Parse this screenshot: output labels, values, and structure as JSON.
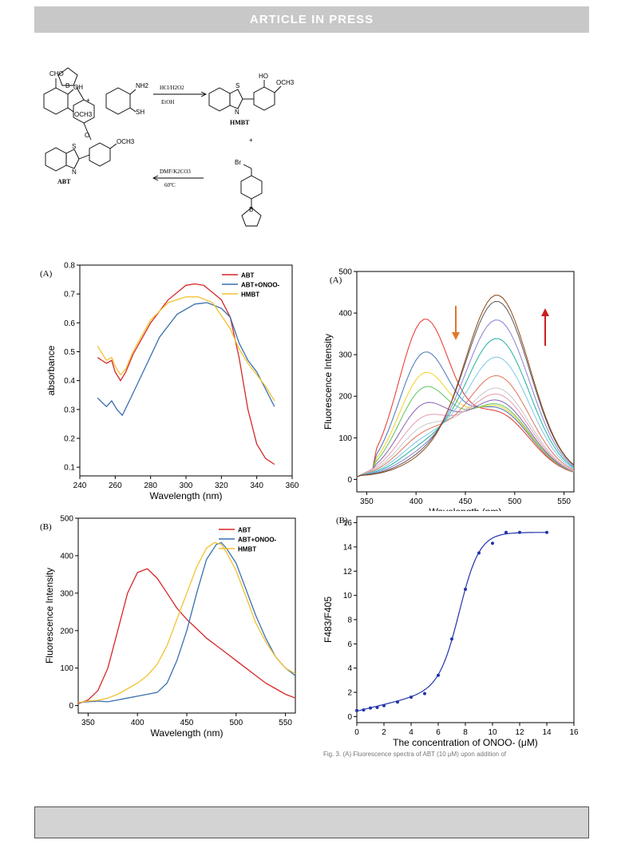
{
  "header": {
    "banner": "ARTICLE  IN  PRESS"
  },
  "scheme": {
    "reagent1": {
      "cho": "CHO",
      "oh": "OH",
      "och3": "OCH3"
    },
    "reagent2": {
      "nh2": "NH2",
      "sh": "SH"
    },
    "plus": "+",
    "step1": {
      "above": "HCl/H2O2",
      "below": "EtOH"
    },
    "product1": {
      "ho": "HO",
      "och3": "OCH3",
      "s": "S",
      "n": "N",
      "name": "HMBT"
    },
    "reagent3": {
      "br": "Br",
      "b": "B",
      "o": "O"
    },
    "step2": {
      "above": "DMF/K2CO3",
      "below": "60ºC"
    },
    "product2": {
      "b": "B",
      "o": "O",
      "och3": "OCH3",
      "s": "S",
      "n": "N",
      "name": "ABT"
    }
  },
  "panels": {
    "absorbance": {
      "label": "(A)"
    },
    "fluorescence_b": {
      "label": "(B)"
    },
    "titration": {
      "label": "(A)"
    },
    "ratio": {
      "label": "(B)"
    }
  },
  "chart_data": [
    {
      "id": "absorbance",
      "type": "line",
      "xlabel": "Wavelength (nm)",
      "ylabel": "absorbance",
      "xlim": [
        240,
        360
      ],
      "ylim": [
        0.07,
        0.8
      ],
      "xticks": [
        240,
        260,
        280,
        300,
        320,
        340,
        360
      ],
      "yticks": [
        0.1,
        0.2,
        0.3,
        0.4,
        0.5,
        0.6,
        0.7,
        0.8
      ],
      "legend": "top-right",
      "series": [
        {
          "name": "ABT",
          "color": "#d62728",
          "points": [
            [
              250,
              0.48
            ],
            [
              255,
              0.46
            ],
            [
              258,
              0.47
            ],
            [
              260,
              0.43
            ],
            [
              263,
              0.4
            ],
            [
              266,
              0.43
            ],
            [
              270,
              0.49
            ],
            [
              280,
              0.6
            ],
            [
              290,
              0.68
            ],
            [
              300,
              0.73
            ],
            [
              305,
              0.735
            ],
            [
              310,
              0.73
            ],
            [
              320,
              0.68
            ],
            [
              325,
              0.62
            ],
            [
              330,
              0.48
            ],
            [
              335,
              0.3
            ],
            [
              340,
              0.18
            ],
            [
              345,
              0.13
            ],
            [
              350,
              0.11
            ]
          ]
        },
        {
          "name": "ABT+ONOO-",
          "color": "#3a6fb0",
          "points": [
            [
              250,
              0.34
            ],
            [
              255,
              0.31
            ],
            [
              258,
              0.33
            ],
            [
              261,
              0.3
            ],
            [
              264,
              0.28
            ],
            [
              268,
              0.33
            ],
            [
              275,
              0.42
            ],
            [
              285,
              0.55
            ],
            [
              295,
              0.63
            ],
            [
              305,
              0.665
            ],
            [
              312,
              0.67
            ],
            [
              320,
              0.65
            ],
            [
              325,
              0.62
            ],
            [
              330,
              0.53
            ],
            [
              335,
              0.47
            ],
            [
              340,
              0.43
            ],
            [
              345,
              0.37
            ],
            [
              350,
              0.31
            ]
          ]
        },
        {
          "name": "HMBT",
          "color": "#f2c232",
          "points": [
            [
              250,
              0.52
            ],
            [
              255,
              0.47
            ],
            [
              258,
              0.48
            ],
            [
              260,
              0.45
            ],
            [
              263,
              0.42
            ],
            [
              266,
              0.44
            ],
            [
              270,
              0.5
            ],
            [
              280,
              0.61
            ],
            [
              290,
              0.67
            ],
            [
              300,
              0.69
            ],
            [
              307,
              0.69
            ],
            [
              315,
              0.67
            ],
            [
              325,
              0.58
            ],
            [
              330,
              0.51
            ],
            [
              335,
              0.46
            ],
            [
              340,
              0.42
            ],
            [
              345,
              0.38
            ],
            [
              350,
              0.33
            ]
          ]
        }
      ]
    },
    {
      "id": "fluorescence_b",
      "type": "line",
      "xlabel": "Wavelength (nm)",
      "ylabel": "Fluorescence Intensity",
      "xlim": [
        340,
        560
      ],
      "ylim": [
        -20,
        500
      ],
      "xticks": [
        350,
        400,
        450,
        500,
        550
      ],
      "yticks": [
        0,
        100,
        200,
        300,
        400,
        500
      ],
      "legend": "top-right",
      "series": [
        {
          "name": "ABT",
          "color": "#d62728",
          "points": [
            [
              340,
              5
            ],
            [
              350,
              15
            ],
            [
              360,
              40
            ],
            [
              370,
              100
            ],
            [
              380,
              200
            ],
            [
              390,
              300
            ],
            [
              400,
              355
            ],
            [
              410,
              365
            ],
            [
              420,
              340
            ],
            [
              430,
              300
            ],
            [
              440,
              260
            ],
            [
              450,
              230
            ],
            [
              460,
              205
            ],
            [
              470,
              180
            ],
            [
              480,
              160
            ],
            [
              490,
              140
            ],
            [
              500,
              120
            ],
            [
              510,
              100
            ],
            [
              520,
              80
            ],
            [
              530,
              60
            ],
            [
              540,
              45
            ],
            [
              550,
              30
            ],
            [
              560,
              20
            ]
          ]
        },
        {
          "name": "ABT+ONOO-",
          "color": "#3a6fb0",
          "points": [
            [
              340,
              8
            ],
            [
              350,
              10
            ],
            [
              360,
              12
            ],
            [
              370,
              10
            ],
            [
              380,
              15
            ],
            [
              390,
              20
            ],
            [
              400,
              25
            ],
            [
              410,
              30
            ],
            [
              420,
              35
            ],
            [
              430,
              60
            ],
            [
              440,
              120
            ],
            [
              450,
              200
            ],
            [
              460,
              300
            ],
            [
              470,
              390
            ],
            [
              480,
              430
            ],
            [
              485,
              435
            ],
            [
              490,
              420
            ],
            [
              500,
              380
            ],
            [
              510,
              310
            ],
            [
              520,
              240
            ],
            [
              530,
              180
            ],
            [
              540,
              130
            ],
            [
              550,
              100
            ],
            [
              560,
              80
            ]
          ]
        },
        {
          "name": "HMBT",
          "color": "#f2c232",
          "points": [
            [
              340,
              8
            ],
            [
              350,
              12
            ],
            [
              360,
              14
            ],
            [
              370,
              20
            ],
            [
              380,
              30
            ],
            [
              390,
              45
            ],
            [
              400,
              60
            ],
            [
              410,
              80
            ],
            [
              420,
              110
            ],
            [
              430,
              160
            ],
            [
              440,
              230
            ],
            [
              450,
              300
            ],
            [
              460,
              370
            ],
            [
              470,
              420
            ],
            [
              478,
              435
            ],
            [
              485,
              430
            ],
            [
              490,
              410
            ],
            [
              500,
              360
            ],
            [
              510,
              290
            ],
            [
              520,
              220
            ],
            [
              530,
              170
            ],
            [
              540,
              130
            ],
            [
              550,
              100
            ],
            [
              560,
              85
            ]
          ]
        }
      ]
    },
    {
      "id": "titration",
      "type": "line",
      "xlabel": "Wavelength (nm)",
      "ylabel": "Fluorescence Intensity",
      "xlim": [
        340,
        560
      ],
      "ylim": [
        -30,
        500
      ],
      "xticks": [
        350,
        400,
        450,
        500,
        550
      ],
      "yticks": [
        0,
        100,
        200,
        300,
        400,
        500
      ],
      "peak_short": [
        365,
        285,
        235,
        200,
        160,
        128,
        105,
        88,
        72,
        58,
        45,
        35,
        28
      ],
      "peak_long": [
        150,
        160,
        165,
        170,
        180,
        195,
        210,
        240,
        285,
        330,
        375,
        420,
        435
      ],
      "colors": [
        "#e8322a",
        "#4a74b8",
        "#f2d22b",
        "#5cc45c",
        "#8a5fb0",
        "#e79bb2",
        "#c8c8c8",
        "#e0725a",
        "#7fc7e6",
        "#20b0a0",
        "#8a7fd8",
        "#5a5a5a",
        "#8b4513"
      ],
      "arrows": [
        {
          "dir": "down",
          "color": "#e0782a"
        },
        {
          "dir": "up",
          "color": "#cc2020"
        }
      ]
    },
    {
      "id": "ratio",
      "type": "scatter",
      "xlabel": "The concentration of ONOO- (μM)",
      "ylabel": "F483/F405",
      "xlim": [
        0,
        16
      ],
      "ylim": [
        -0.5,
        16.5
      ],
      "xticks": [
        0,
        2,
        4,
        6,
        8,
        10,
        12,
        14,
        16
      ],
      "yticks": [
        0,
        2,
        4,
        6,
        8,
        10,
        12,
        14,
        16
      ],
      "x": [
        0,
        0.5,
        1,
        1.5,
        2,
        3,
        4,
        5,
        6,
        7,
        8,
        9,
        10,
        11,
        12,
        14
      ],
      "y": [
        0.5,
        0.55,
        0.7,
        0.75,
        0.9,
        1.2,
        1.6,
        1.9,
        3.4,
        6.4,
        10.5,
        13.5,
        14.3,
        15.2,
        15.2,
        15.2
      ],
      "color": "#2233aa"
    }
  ],
  "figure_caption_fragment": "Fig. 3. (A) Fluorescence spectra of ABT (10 μM) upon addition of"
}
